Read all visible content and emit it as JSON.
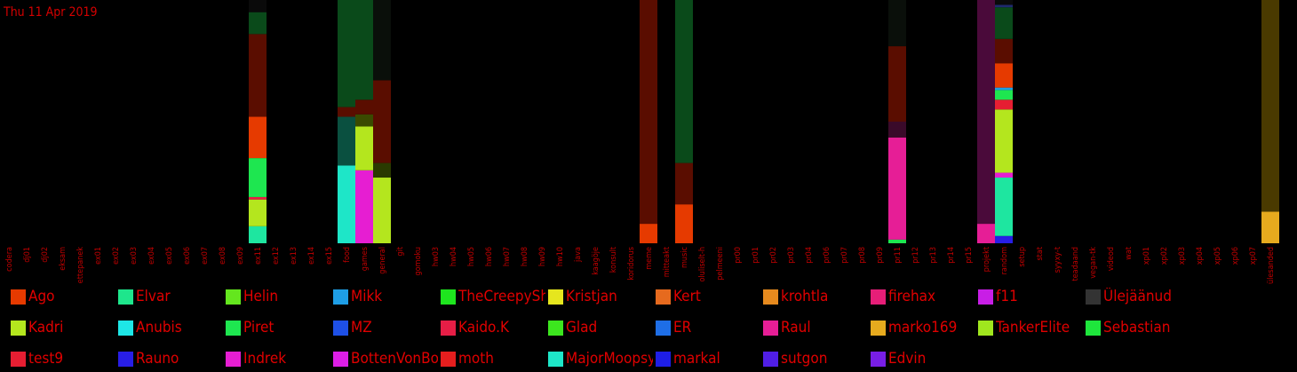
{
  "chart_data": {
    "type": "bar",
    "stacked": true,
    "date": "Thu 11 Apr 2019",
    "categories": [
      "codera",
      "dj01",
      "dj02",
      "eksam",
      "ettepanek",
      "ex01",
      "ex02",
      "ex03",
      "ex04",
      "ex05",
      "ex06",
      "ex07",
      "ex08",
      "ex09",
      "ex11",
      "ex12",
      "ex13",
      "ex14",
      "ex15",
      "food",
      "games",
      "general",
      "git",
      "gomoku",
      "hw03",
      "hw04",
      "hw05",
      "hw06",
      "hw07",
      "hw08",
      "hw09",
      "hw10",
      "java",
      "kaagöje",
      "konsult",
      "koridorus",
      "meme",
      "mitteakt",
      "music",
      "oluliselt-h",
      "pelmeeni",
      "pr00",
      "pr01",
      "pr02",
      "pr03",
      "pr04",
      "pr06",
      "pr07",
      "pr08",
      "pr09",
      "pr11",
      "pr12",
      "pr13",
      "pr14",
      "pr15",
      "projekt",
      "random",
      "setup",
      "stat",
      "syyxy-t",
      "teadaand",
      "vegan-tk",
      "videod",
      "wat",
      "xp01",
      "xp02",
      "xp03",
      "xp04",
      "xp05",
      "xp06",
      "xp07",
      "ülesanded"
    ],
    "ylim": [
      0,
      100
    ],
    "legend_placement": "bottom",
    "legend": [
      {
        "name": "Ago",
        "color": "#e63a00"
      },
      {
        "name": "Elvar",
        "color": "#1ee68c"
      },
      {
        "name": "Helin",
        "color": "#64e61e"
      },
      {
        "name": "Mikk",
        "color": "#1e9ee6"
      },
      {
        "name": "TheCreepySh",
        "color": "#1ee61e"
      },
      {
        "name": "Kristjan",
        "color": "#e6e61e"
      },
      {
        "name": "Kert",
        "color": "#e66a1e"
      },
      {
        "name": "krohtla",
        "color": "#e68a1e"
      },
      {
        "name": "firehax",
        "color": "#e61e78"
      },
      {
        "name": "f11",
        "color": "#c81ee6"
      },
      {
        "name": "Ülejäänud",
        "color": "#333333"
      },
      {
        "name": "Kadri",
        "color": "#b4e61e"
      },
      {
        "name": "Anubis",
        "color": "#1ee6e6"
      },
      {
        "name": "Piret",
        "color": "#1ee650"
      },
      {
        "name": "MZ",
        "color": "#1e50e6"
      },
      {
        "name": "Kaido.K",
        "color": "#e61e46"
      },
      {
        "name": "Glad",
        "color": "#3ce61e"
      },
      {
        "name": "ER",
        "color": "#1e6ee6"
      },
      {
        "name": "Raul",
        "color": "#e61e96"
      },
      {
        "name": "marko169",
        "color": "#e6aa1e"
      },
      {
        "name": "TankerElite",
        "color": "#a0e61e"
      },
      {
        "name": "Sebastian",
        "color": "#1ee63c"
      },
      {
        "name": "test9",
        "color": "#e61e32"
      },
      {
        "name": "Rauno",
        "color": "#281ee6"
      },
      {
        "name": "Indrek",
        "color": "#e61ed2"
      },
      {
        "name": "BottenVonBot",
        "color": "#dc1ee6"
      },
      {
        "name": "moth",
        "color": "#e61e1e"
      },
      {
        "name": "MajorMoopsy",
        "color": "#1ee6c8"
      },
      {
        "name": "markal",
        "color": "#1e1ee6"
      },
      {
        "name": "sutgon",
        "color": "#501ee6"
      },
      {
        "name": "Edvin",
        "color": "#781ee6"
      }
    ],
    "series_stacks": [
      {
        "category": "ex11",
        "segments": [
          {
            "value": 7,
            "color": "#1ee6a0"
          },
          {
            "value": 11,
            "color": "#b4e61e"
          },
          {
            "value": 1,
            "color": "#e61e46"
          },
          {
            "value": 16,
            "color": "#1ee650"
          },
          {
            "value": 17,
            "color": "#e63a00"
          },
          {
            "value": 34,
            "color": "#5a0d00"
          },
          {
            "value": 9,
            "color": "#0a4a1a"
          },
          {
            "value": 5,
            "color": "#0a0a0a"
          }
        ]
      },
      {
        "category": "food",
        "segments": [
          {
            "value": 32,
            "color": "#1ee6c8"
          },
          {
            "value": 20,
            "color": "#0a5040"
          },
          {
            "value": 4,
            "color": "#5a0d00"
          },
          {
            "value": 44,
            "color": "#0a4a1a"
          }
        ]
      },
      {
        "category": "games",
        "segments": [
          {
            "value": 30,
            "color": "#e61ed2"
          },
          {
            "value": 18,
            "color": "#b4e61e"
          },
          {
            "value": 5,
            "color": "#3a4a00"
          },
          {
            "value": 6,
            "color": "#5a0d00"
          },
          {
            "value": 41,
            "color": "#0a4a1a"
          }
        ]
      },
      {
        "category": "general",
        "segments": [
          {
            "value": 27,
            "color": "#b4e61e"
          },
          {
            "value": 6,
            "color": "#2a3a00"
          },
          {
            "value": 34,
            "color": "#5a0d00"
          },
          {
            "value": 33,
            "color": "#0a0f0a"
          }
        ]
      },
      {
        "category": "meme",
        "segments": [
          {
            "value": 8,
            "color": "#e63a00"
          },
          {
            "value": 92,
            "color": "#5a0d00"
          }
        ]
      },
      {
        "category": "music",
        "segments": [
          {
            "value": 16,
            "color": "#e63a00"
          },
          {
            "value": 17,
            "color": "#5a0d00"
          },
          {
            "value": 67,
            "color": "#0a4a1a"
          }
        ]
      },
      {
        "category": "pr11",
        "segments": [
          {
            "value": 1.5,
            "color": "#1ee650"
          },
          {
            "value": 42,
            "color": "#e61e96"
          },
          {
            "value": 6.5,
            "color": "#3a0a2a"
          },
          {
            "value": 31,
            "color": "#5a0d00"
          },
          {
            "value": 19,
            "color": "#0a0f0a"
          }
        ]
      },
      {
        "category": "projekt",
        "segments": [
          {
            "value": 8,
            "color": "#e61e96"
          },
          {
            "value": 92,
            "color": "#4a0a3a"
          }
        ]
      },
      {
        "category": "random",
        "segments": [
          {
            "value": 3,
            "color": "#281ee6"
          },
          {
            "value": 24,
            "color": "#1ee6a0"
          },
          {
            "value": 2,
            "color": "#e61ed2"
          },
          {
            "value": 26,
            "color": "#b4e61e"
          },
          {
            "value": 4,
            "color": "#e61e32"
          },
          {
            "value": 4,
            "color": "#1ee650"
          },
          {
            "value": 1,
            "color": "#1e9ee6"
          },
          {
            "value": 10,
            "color": "#e63a00"
          },
          {
            "value": 10,
            "color": "#5a0d00"
          },
          {
            "value": 13,
            "color": "#0a4a1a"
          },
          {
            "value": 1,
            "color": "#1e2a6e"
          },
          {
            "value": 2,
            "color": "#0a0a0a"
          }
        ]
      },
      {
        "category": "ülesanded",
        "segments": [
          {
            "value": 13,
            "color": "#e6aa1e"
          },
          {
            "value": 87,
            "color": "#4a3a00"
          }
        ]
      }
    ]
  }
}
